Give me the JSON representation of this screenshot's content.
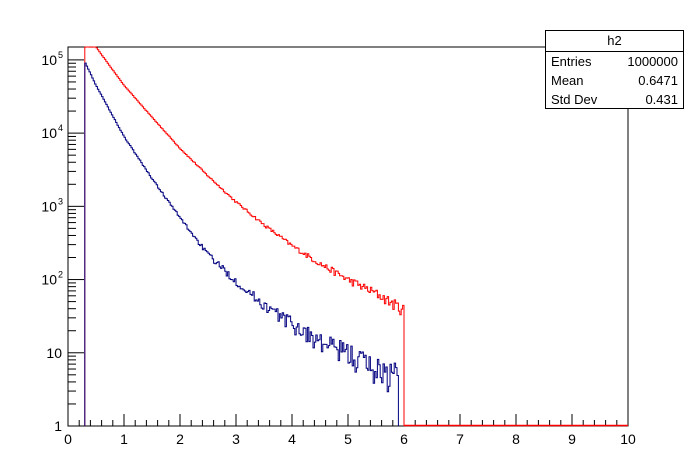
{
  "chart_data": {
    "type": "line",
    "step": true,
    "title": "",
    "xlabel": "",
    "ylabel": "",
    "xlim": [
      0,
      10
    ],
    "ylim": [
      1,
      150000
    ],
    "yscale": "log",
    "grid": false,
    "x_ticks": [
      "0",
      "1",
      "2",
      "3",
      "4",
      "5",
      "6",
      "7",
      "8",
      "9",
      "10"
    ],
    "y_ticks": [
      {
        "value": 1,
        "base": "1",
        "exp": ""
      },
      {
        "value": 10,
        "base": "10",
        "exp": ""
      },
      {
        "value": 100,
        "base": "10",
        "exp": "2"
      },
      {
        "value": 1000,
        "base": "10",
        "exp": "3"
      },
      {
        "value": 10000,
        "base": "10",
        "exp": "4"
      },
      {
        "value": 100000,
        "base": "10",
        "exp": "5"
      }
    ],
    "series": [
      {
        "color": "#ff0000",
        "x": [
          0.3,
          0.5,
          1.0,
          1.5,
          2.0,
          2.5,
          3.0,
          3.5,
          4.0,
          4.5,
          5.0,
          5.5,
          6.0
        ],
        "values": [
          150000,
          150000,
          45000,
          16500,
          6200,
          2600,
          1150,
          560,
          290,
          165,
          100,
          65,
          38
        ]
      },
      {
        "color": "#00007f",
        "x": [
          0.3,
          0.5,
          1.0,
          1.5,
          2.0,
          2.5,
          3.0,
          3.5,
          4.0,
          4.5,
          5.0,
          5.5,
          5.9
        ],
        "values": [
          95000,
          45000,
          9000,
          2400,
          700,
          220,
          95,
          45,
          25,
          14,
          10,
          6,
          5
        ]
      }
    ],
    "stats": {
      "title": "h2",
      "rows": [
        {
          "label": "Entries",
          "value": "1000000"
        },
        {
          "label": "Mean",
          "value": "0.6471"
        },
        {
          "label": "Std Dev",
          "value": "0.431"
        }
      ]
    }
  }
}
